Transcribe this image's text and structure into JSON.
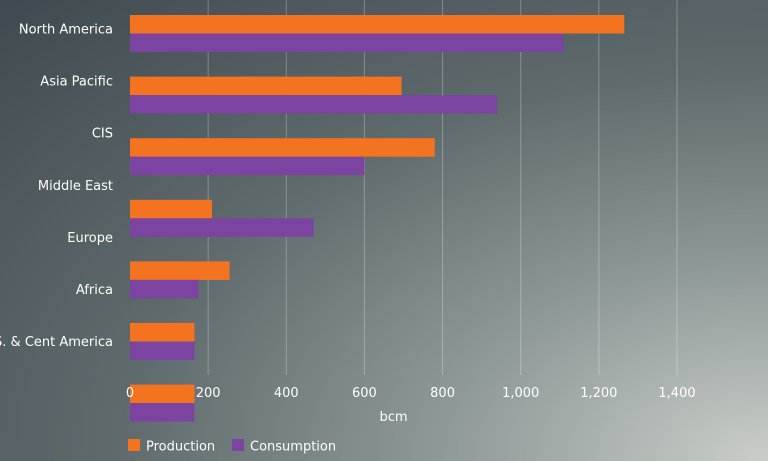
{
  "chart_data": {
    "type": "bar",
    "orientation": "horizontal",
    "categories": [
      "North America",
      "Asia Pacific",
      "CIS",
      "Middle East",
      "Europe",
      "Africa",
      "S. & Cent America"
    ],
    "series": [
      {
        "name": "Production",
        "color": "#f37321",
        "values": [
          1265,
          695,
          780,
          210,
          255,
          165,
          165
        ]
      },
      {
        "name": "Consumption",
        "color": "#7b44a0",
        "values": [
          1110,
          940,
          600,
          470,
          175,
          165,
          165
        ]
      }
    ],
    "xlabel": "bcm",
    "xlim": [
      0,
      1400
    ],
    "xticks": [
      0,
      200,
      400,
      600,
      800,
      1000,
      1200,
      1400
    ],
    "xtick_labels": [
      "0",
      "200",
      "400",
      "600",
      "800",
      "1,000",
      "1,200",
      "1,400"
    ],
    "grid": true,
    "legend_position": "bottom-left"
  }
}
